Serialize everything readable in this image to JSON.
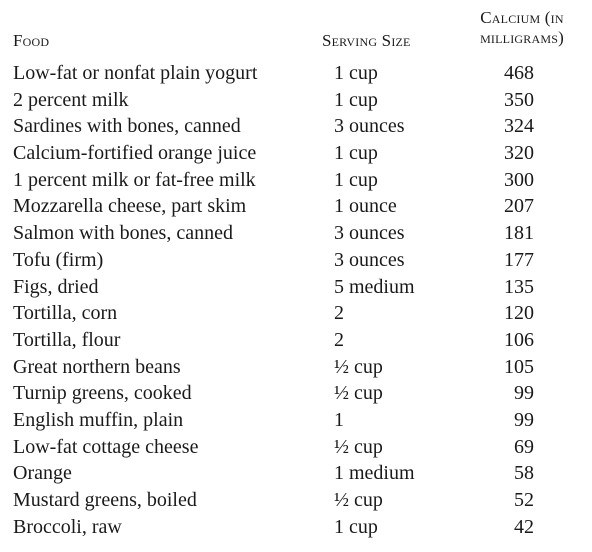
{
  "table": {
    "headers": {
      "food": "Food",
      "serving_size": "Serving Size",
      "calcium": "Calcium (in\nmilligrams)"
    },
    "rows": [
      {
        "food": "Low-fat or nonfat plain yogurt",
        "serving": "1 cup",
        "calcium": "468"
      },
      {
        "food": "2 percent milk",
        "serving": "1 cup",
        "calcium": "350"
      },
      {
        "food": "Sardines with bones, canned",
        "serving": "3 ounces",
        "calcium": "324"
      },
      {
        "food": "Calcium-fortified orange juice",
        "serving": "1 cup",
        "calcium": "320"
      },
      {
        "food": "1 percent milk or fat-free milk",
        "serving": "1 cup",
        "calcium": "300"
      },
      {
        "food": "Mozzarella cheese, part skim",
        "serving": "1 ounce",
        "calcium": "207"
      },
      {
        "food": "Salmon with bones, canned",
        "serving": "3 ounces",
        "calcium": "181"
      },
      {
        "food": "Tofu (firm)",
        "serving": "3 ounces",
        "calcium": "177"
      },
      {
        "food": "Figs, dried",
        "serving": "5 medium",
        "calcium": "135"
      },
      {
        "food": "Tortilla, corn",
        "serving": "2",
        "calcium": "120"
      },
      {
        "food": "Tortilla, flour",
        "serving": "2",
        "calcium": "106"
      },
      {
        "food": "Great northern beans",
        "serving": "½ cup",
        "calcium": "105"
      },
      {
        "food": "Turnip greens, cooked",
        "serving": "½ cup",
        "calcium": "99"
      },
      {
        "food": "English muffin, plain",
        "serving": "1",
        "calcium": "99"
      },
      {
        "food": "Low-fat cottage cheese",
        "serving": "½ cup",
        "calcium": "69"
      },
      {
        "food": "Orange",
        "serving": "1 medium",
        "calcium": "58"
      },
      {
        "food": "Mustard greens, boiled",
        "serving": "½ cup",
        "calcium": "52"
      },
      {
        "food": "Broccoli, raw",
        "serving": "1 cup",
        "calcium": "42"
      }
    ]
  }
}
